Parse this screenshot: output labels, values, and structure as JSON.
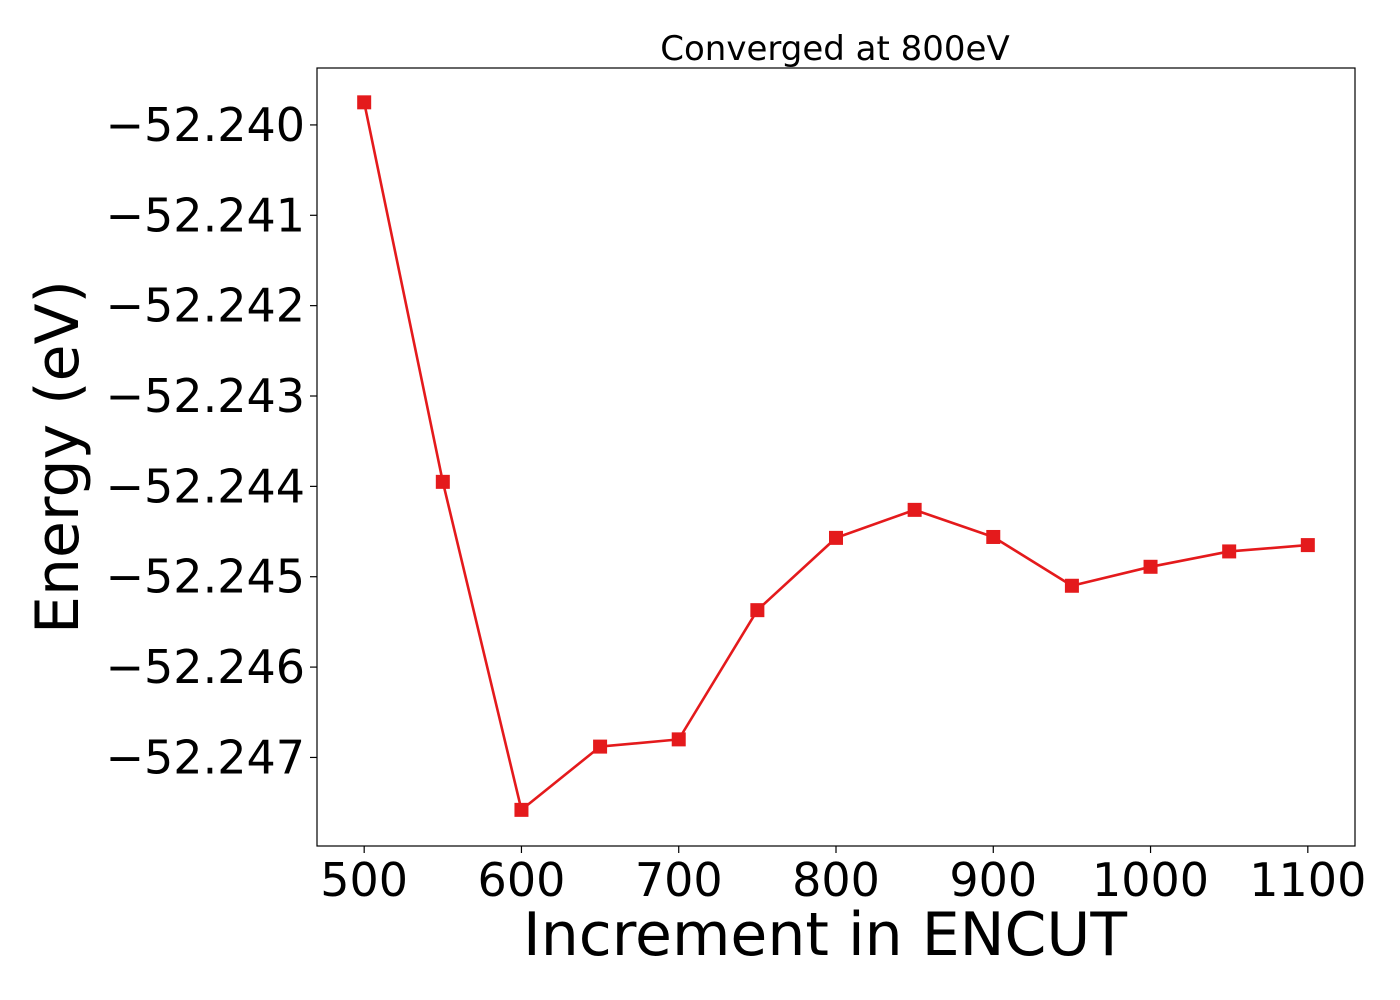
{
  "chart_data": {
    "type": "line",
    "title": "Converged at 800eV",
    "xlabel": "Increment in ENCUT",
    "ylabel": "Energy (eV)",
    "x": [
      500,
      550,
      600,
      650,
      700,
      750,
      800,
      850,
      900,
      950,
      1000,
      1050,
      1100
    ],
    "series": [
      {
        "values": [
          -52.23975,
          -52.24395,
          -52.24758,
          -52.24688,
          -52.2468,
          -52.24537,
          -52.24457,
          -52.24426,
          -52.24456,
          -52.2451,
          -52.24489,
          -52.24472,
          -52.24465
        ],
        "color": "#e41a1c",
        "marker": "square"
      }
    ],
    "xlim": [
      470,
      1130
    ],
    "ylim": [
      -52.24798,
      -52.23937
    ],
    "xticks": [
      500,
      600,
      700,
      800,
      900,
      1000,
      1100
    ],
    "xtick_labels": [
      "500",
      "600",
      "700",
      "800",
      "900",
      "1000",
      "1100"
    ],
    "yticks": [
      -52.24,
      -52.241,
      -52.242,
      -52.243,
      -52.244,
      -52.245,
      -52.246,
      -52.247
    ],
    "ytick_labels": [
      "−52.240",
      "−52.241",
      "−52.242",
      "−52.243",
      "−52.244",
      "−52.245",
      "−52.246",
      "−52.247"
    ],
    "grid": false,
    "legend": "none"
  }
}
